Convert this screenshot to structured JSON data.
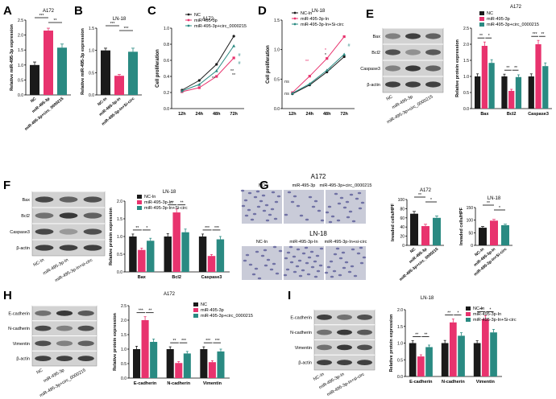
{
  "colors": {
    "nc": "#1a1a1a",
    "mir": "#e8336e",
    "combo": "#2a8a82",
    "axis": "#000000",
    "blot_bg": "#c8c8c8",
    "band": "#303030"
  },
  "panel_letters": [
    "A",
    "B",
    "C",
    "D",
    "E",
    "F",
    "G",
    "H",
    "I"
  ],
  "common": {
    "ylabel_expr": "Relative miR-495-3p expression",
    "ylabel_prolif": "Cell proliferation",
    "ylabel_protein": "Relative protein expression",
    "ylabel_invaded": "Invaded cells/HPF",
    "time_labels": [
      "12h",
      "24h",
      "48h",
      "72h"
    ],
    "beta_actin": "β-actin"
  },
  "A": {
    "title": "A172",
    "ylim": [
      0,
      2.5
    ],
    "yticks": [
      "0.0",
      "0.5",
      "1.0",
      "1.5",
      "2.0",
      "2.5"
    ],
    "categories": [
      "NC",
      "miR-495-3p",
      "miR-495-3p+circ_0000215"
    ],
    "values": [
      1.0,
      2.15,
      1.58
    ],
    "errors": [
      0.1,
      0.08,
      0.12
    ],
    "sig": [
      "***",
      "**"
    ]
  },
  "B": {
    "title": "LN-18",
    "ylim": [
      0,
      1.5
    ],
    "yticks": [
      "0.0",
      "0.5",
      "1.0",
      "1.5"
    ],
    "categories": [
      "NC-In",
      "miR-495-3p-In",
      "miR-495-3p-In+Si-circ"
    ],
    "values": [
      1.0,
      0.43,
      0.97
    ],
    "errors": [
      0.05,
      0.03,
      0.08
    ],
    "sig": [
      "***",
      "***"
    ]
  },
  "C": {
    "title": "A172",
    "legend": [
      "NC",
      "miR-495-3p",
      "miR-495-3p+circ_0000215"
    ],
    "ylim": [
      0.0,
      1.0
    ],
    "yticks": [
      "0.0",
      "0.2",
      "0.4",
      "0.6",
      "0.8",
      "1.0"
    ],
    "series": [
      {
        "name": "NC",
        "values": [
          0.23,
          0.35,
          0.55,
          0.9
        ]
      },
      {
        "name": "miR-495-3p",
        "values": [
          0.21,
          0.26,
          0.4,
          0.63
        ]
      },
      {
        "name": "miR-495-3p+circ_0000215",
        "values": [
          0.22,
          0.3,
          0.47,
          0.78
        ]
      }
    ],
    "annotations": [
      "*",
      "**",
      "**",
      "**",
      "#",
      "#"
    ]
  },
  "D": {
    "title": "LN-18",
    "legend": [
      "NC-In",
      "miR-495-3p-In",
      "miR-495-3p-In+Si-circ"
    ],
    "ylim": [
      0.0,
      1.5
    ],
    "yticks": [
      "0.0",
      "0.5",
      "1.0",
      "1.5"
    ],
    "series": [
      {
        "name": "NC-In",
        "values": [
          0.25,
          0.4,
          0.62,
          0.88
        ]
      },
      {
        "name": "miR-495-3p-In",
        "values": [
          0.27,
          0.55,
          0.85,
          1.22
        ]
      },
      {
        "name": "miR-495-3p-In+Si-circ",
        "values": [
          0.26,
          0.42,
          0.65,
          0.92
        ]
      }
    ],
    "annotations": [
      "ns",
      "ns",
      "**",
      "*",
      "*",
      "#",
      "#"
    ]
  },
  "E": {
    "title": "A172",
    "blot_labels": [
      "Bax",
      "Bcl2",
      "Caspase3",
      "β-actin"
    ],
    "lane_labels": [
      "NC",
      "miR-495-3p",
      "miR-495-3p+circ_0000215"
    ],
    "legend": [
      "NC",
      "miR-495-3p",
      "miR-495-3p+circ_0000215"
    ],
    "ylim": [
      0,
      2.5
    ],
    "yticks": [
      "0.0",
      "0.5",
      "1.0",
      "1.5",
      "2.0",
      "2.5"
    ],
    "categories": [
      "Bax",
      "Bcl2",
      "Caspase3"
    ],
    "series": [
      {
        "name": "NC",
        "values": [
          1.0,
          1.0,
          1.0
        ],
        "errors": [
          0.08,
          0.07,
          0.08
        ]
      },
      {
        "name": "miR-495-3p",
        "values": [
          1.95,
          0.55,
          2.0
        ],
        "errors": [
          0.12,
          0.05,
          0.12
        ]
      },
      {
        "name": "miR-495-3p+circ_0000215",
        "values": [
          1.42,
          0.98,
          1.32
        ],
        "errors": [
          0.1,
          0.07,
          0.1
        ]
      }
    ],
    "sig": [
      "**",
      "*",
      "**",
      "**",
      "***",
      "**"
    ]
  },
  "F": {
    "title": "LN-18",
    "blot_labels": [
      "Bax",
      "Bcl2",
      "Caspase3",
      "β-actin"
    ],
    "lane_labels": [
      "NC-In",
      "miR-495-3p-In",
      "miR-495-3p-In+si-circ"
    ],
    "legend": [
      "NC-In",
      "miR-495-3p-In",
      "miR-495-3p-In+Si-circ"
    ],
    "ylim": [
      0,
      2.0
    ],
    "yticks": [
      "0.0",
      "0.5",
      "1.0",
      "1.5",
      "2.0"
    ],
    "categories": [
      "Bax",
      "Bcl2",
      "Caspase3"
    ],
    "series": [
      {
        "name": "NC-In",
        "values": [
          1.0,
          1.0,
          1.0
        ],
        "errors": [
          0.07,
          0.08,
          0.07
        ]
      },
      {
        "name": "miR-495-3p-In",
        "values": [
          0.62,
          1.68,
          0.45
        ],
        "errors": [
          0.05,
          0.1,
          0.04
        ]
      },
      {
        "name": "miR-495-3p-In+Si-circ",
        "values": [
          0.88,
          1.12,
          0.92
        ],
        "errors": [
          0.07,
          0.09,
          0.08
        ]
      }
    ],
    "sig": [
      "**",
      "*",
      "**",
      "**",
      "***",
      "***"
    ]
  },
  "G": {
    "row1_title": "A172",
    "row1_labels": [
      "NC",
      "miR-495-3p",
      "miR-495-3p+circ_0000215"
    ],
    "row2_title": "LN-18",
    "row2_labels": [
      "NC-In",
      "miR-495-3p-In",
      "miR-495-3p-In+si-circ"
    ],
    "chart1": {
      "title": "A172",
      "ylim": [
        0,
        100
      ],
      "yticks": [
        "0",
        "20",
        "40",
        "60",
        "80",
        "100"
      ],
      "categories": [
        "NC",
        "miR-495-3p",
        "miR-495-3p+circ_0000215"
      ],
      "values": [
        69,
        42,
        60
      ],
      "errors": [
        5,
        4,
        4
      ],
      "sig": [
        "**",
        "*"
      ]
    },
    "chart2": {
      "title": "LN-18",
      "ylim": [
        0,
        150
      ],
      "yticks": [
        "0",
        "50",
        "100",
        "150"
      ],
      "categories": [
        "NC-In",
        "miR-495-3p-In",
        "miR-495-3p-In+Si-circ"
      ],
      "values": [
        70,
        98,
        80
      ],
      "errors": [
        5,
        5,
        4
      ],
      "sig": [
        "**",
        "*"
      ]
    }
  },
  "H": {
    "title": "A172",
    "blot_labels": [
      "E-cadherin",
      "N-cadherin",
      "Vimentin",
      "β-actin"
    ],
    "lane_labels": [
      "NC",
      "miR-495-3p",
      "miR-495-3p+circ_0000215"
    ],
    "legend": [
      "NC",
      "miR-495-3p",
      "miR-495-3p+circ_0000215"
    ],
    "ylim": [
      0,
      2.5
    ],
    "yticks": [
      "0.0",
      "0.5",
      "1.0",
      "1.5",
      "2.0",
      "2.5"
    ],
    "categories": [
      "E-cadherin",
      "N-cadherin",
      "Vimentin"
    ],
    "series": [
      {
        "name": "NC",
        "values": [
          1.0,
          1.0,
          1.0
        ],
        "errors": [
          0.1,
          0.08,
          0.08
        ]
      },
      {
        "name": "miR-495-3p",
        "values": [
          2.0,
          0.52,
          0.55
        ],
        "errors": [
          0.12,
          0.05,
          0.05
        ]
      },
      {
        "name": "miR-495-3p+circ_0000215",
        "values": [
          1.25,
          0.85,
          0.92
        ],
        "errors": [
          0.1,
          0.07,
          0.08
        ]
      }
    ],
    "sig": [
      "***",
      "**",
      "**",
      "***",
      "***",
      "***"
    ]
  },
  "I": {
    "title": "LN-18",
    "blot_labels": [
      "E-cadherin",
      "N-cadherin",
      "Vimentin",
      "β-actin"
    ],
    "lane_labels": [
      "NC-In",
      "miR-495-3p-In",
      "miR-495-3p-In+si-circ"
    ],
    "legend": [
      "NC-In",
      "miR-495-3p-In",
      "miR-495-3p-In+Si-circ"
    ],
    "ylim": [
      0,
      2.0
    ],
    "yticks": [
      "0.0",
      "0.5",
      "1.0",
      "1.5",
      "2.0"
    ],
    "categories": [
      "E-cadherin",
      "N-cadherin",
      "Vimentin"
    ],
    "series": [
      {
        "name": "NC-In",
        "values": [
          1.0,
          1.0,
          1.0
        ],
        "errors": [
          0.07,
          0.08,
          0.07
        ]
      },
      {
        "name": "miR-495-3p-In",
        "values": [
          0.6,
          1.62,
          1.72
        ],
        "errors": [
          0.05,
          0.1,
          0.1
        ]
      },
      {
        "name": "miR-495-3p-In+Si-circ",
        "values": [
          0.88,
          1.22,
          1.32
        ],
        "errors": [
          0.06,
          0.09,
          0.09
        ]
      }
    ],
    "sig": [
      "**",
      "**",
      "**",
      "*",
      "**",
      "*"
    ]
  }
}
